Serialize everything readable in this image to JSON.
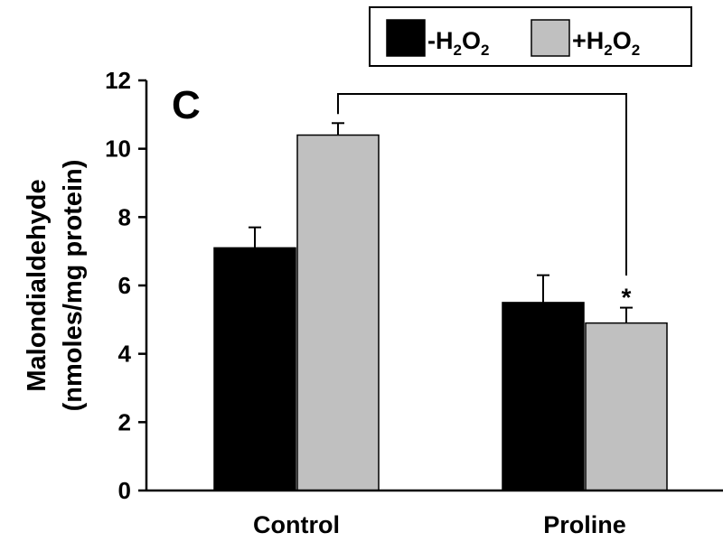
{
  "chart_data": {
    "type": "bar",
    "panel_label": "C",
    "ylabel_line1": "Malondialdehyde",
    "ylabel_line2": "(nmoles/mg protein)",
    "xlabel": "",
    "ylim": [
      0,
      12
    ],
    "yticks": [
      "0",
      "2",
      "4",
      "6",
      "8",
      "10",
      "12"
    ],
    "categories": [
      "Control",
      "Proline"
    ],
    "series": [
      {
        "name": "-H2O2",
        "color": "#000000",
        "values": [
          7.1,
          5.5
        ],
        "errors": [
          0.6,
          0.8
        ]
      },
      {
        "name": "+H2O2",
        "color": "#c0c0c0",
        "values": [
          10.4,
          4.9
        ],
        "errors": [
          0.35,
          0.45
        ]
      }
    ],
    "legend": {
      "placement": "top-right",
      "items": [
        {
          "pre": "-H",
          "sub1": "2",
          "mid": "O",
          "sub2": "2"
        },
        {
          "pre": "+H",
          "sub1": "2",
          "mid": "O",
          "sub2": "2"
        }
      ]
    },
    "significance": {
      "marker": "*",
      "from": "Control +H2O2",
      "to": "Proline +H2O2"
    },
    "grid": false
  }
}
